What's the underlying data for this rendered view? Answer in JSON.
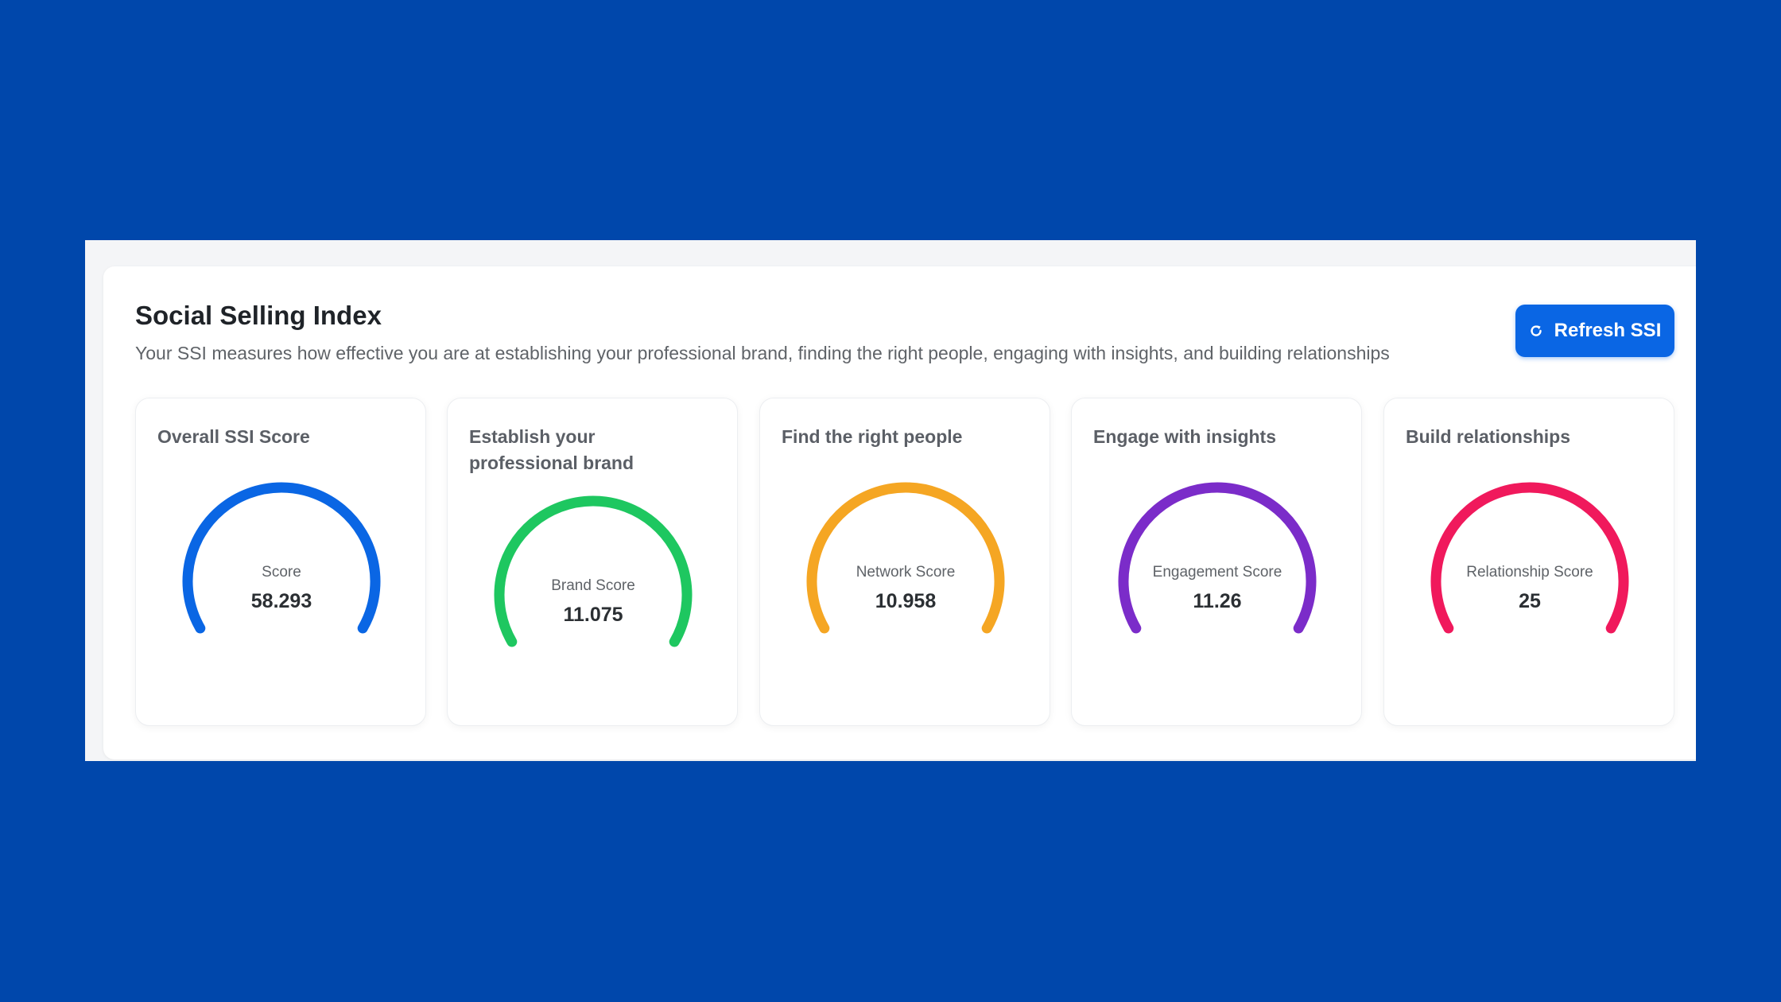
{
  "header": {
    "title": "Social Selling Index",
    "description": "Your SSI measures how effective you are at establishing your professional brand, finding the right people, engaging with insights, and building relationships",
    "refresh_label": "Refresh SSI",
    "refresh_icon": "refresh-icon"
  },
  "cards": [
    {
      "title": "Overall SSI Score",
      "label": "Score",
      "value": "58.293",
      "color": "#0a66e4"
    },
    {
      "title": "Establish your professional brand",
      "label": "Brand Score",
      "value": "11.075",
      "color": "#1ec760"
    },
    {
      "title": "Find the right people",
      "label": "Network Score",
      "value": "10.958",
      "color": "#f5a623"
    },
    {
      "title": "Engage with insights",
      "label": "Engagement Score",
      "value": "11.26",
      "color": "#7b2cc9"
    },
    {
      "title": "Build relationships",
      "label": "Relationship Score",
      "value": "25",
      "color": "#f0195c"
    }
  ]
}
